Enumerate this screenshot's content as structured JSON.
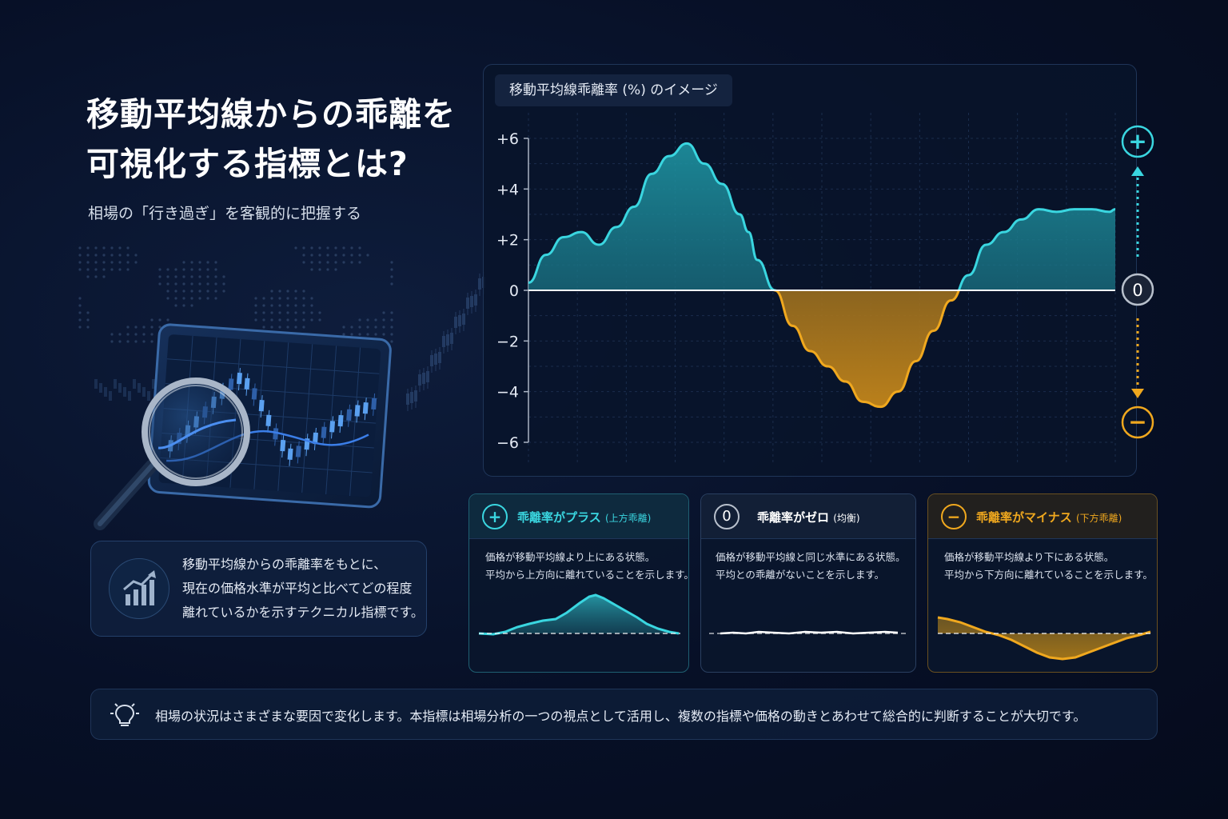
{
  "hero": {
    "title_line1": "移動平均線からの乖離を",
    "title_line2": "可視化する指標とは?",
    "subtitle": "相場の「行き過ぎ」を客観的に把握する"
  },
  "info": {
    "line1": "移動平均線からの乖離率をもとに、",
    "line2": "現在の価格水準が平均と比べてどの程度",
    "line3": "離れているかを示すテクニカル指標です。",
    "icon": "bar-chart-up-icon"
  },
  "colors": {
    "positive": "#3ad6e0",
    "negative": "#f0a81e",
    "zero": "#ffffff"
  },
  "chart_data": {
    "type": "area",
    "title": "移動平均線乖離率 (%) のイメージ",
    "yticks": [
      "+6",
      "+4",
      "+2",
      "0",
      "−2",
      "−4",
      "−6"
    ],
    "ylim": [
      -6,
      6
    ],
    "xlim": [
      0,
      100
    ],
    "grid": true,
    "x": [
      0,
      3,
      6,
      9,
      12,
      15,
      18,
      21,
      24,
      27,
      30,
      33,
      36,
      37.5,
      39,
      42,
      45,
      48,
      51,
      54,
      57,
      60,
      63,
      66,
      69,
      72,
      75,
      78,
      81,
      84,
      87,
      90,
      93,
      96,
      99,
      100
    ],
    "values": [
      0.3,
      1.4,
      2.1,
      2.3,
      1.8,
      2.5,
      3.3,
      4.6,
      5.3,
      5.8,
      5.0,
      4.2,
      3.0,
      2.3,
      1.2,
      0.0,
      -1.4,
      -2.4,
      -3.0,
      -3.6,
      -4.4,
      -4.6,
      -4.0,
      -2.8,
      -1.6,
      -0.4,
      0.6,
      1.8,
      2.3,
      2.8,
      3.2,
      3.1,
      3.2,
      3.2,
      3.1,
      3.2
    ]
  },
  "indicator": {
    "plus": "+",
    "zero": "0",
    "minus": "−"
  },
  "cards": [
    {
      "icon": "+",
      "title": "乖離率がプラス",
      "title_sub": "(上方乖離)",
      "line1": "価格が移動平均線より上にある状態。",
      "line2": "平均から上方向に離れていることを示します。"
    },
    {
      "icon": "0",
      "title": "乖離率がゼロ",
      "title_sub": "(均衡)",
      "line1": "価格が移動平均線と同じ水準にある状態。",
      "line2": "平均との乖離がないことを示します。"
    },
    {
      "icon": "−",
      "title": "乖離率がマイナス",
      "title_sub": "(下方乖離)",
      "line1": "価格が移動平均線より下にある状態。",
      "line2": "平均から下方向に離れていることを示します。"
    }
  ],
  "tip": {
    "icon": "lightbulb-icon",
    "text": "相場の状況はさまざまな要因で変化します。本指標は相場分析の一つの視点として活用し、複数の指標や価格の動きとあわせて総合的に判断することが大切です。"
  }
}
